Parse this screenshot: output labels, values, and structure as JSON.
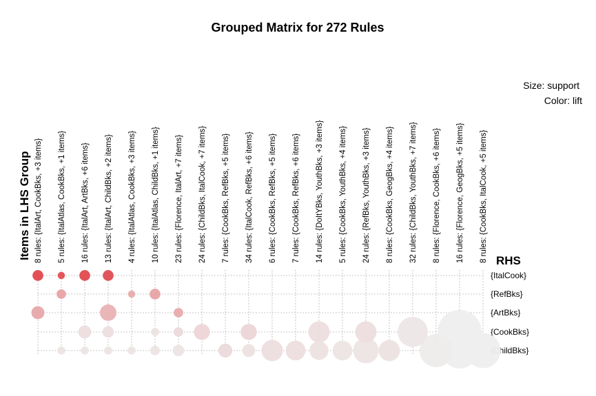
{
  "chart_data": {
    "type": "grouped-matrix",
    "title": "Grouped Matrix for 272 Rules",
    "legend": {
      "size": "Size: support",
      "color": "Color: lift",
      "placement": "top-right"
    },
    "ylabel": "Items in LHS Group",
    "xlabel": "RHS",
    "columns": [
      "8 rules: {ItalArt, CookBks, +3 items}",
      "5 rules: {ItalAtlas, CookBks, +1 items}",
      "16 rules: {ItalArt, ArtBks, +6 items}",
      "13 rules: {ItalArt, ChildBks, +2 items}",
      "4 rules: {ItalAtlas, CookBks, +3 items}",
      "10 rules: {ItalAtlas, ChildBks, +1 items}",
      "23 rules: {Florence, ItalArt, +7 items}",
      "24 rules: {ChildBks, ItalCook, +7 items}",
      "7 rules: {CookBks, RefBks, +5 items}",
      "34 rules: {ItalCook, RefBks, +6 items}",
      "6 rules: {CookBks, RefBks, +5 items}",
      "7 rules: {CookBks, RefBks, +6 items}",
      "14 rules: {DoItYBks, YouthBks, +3 items}",
      "5 rules: {CookBks, YouthBks, +4 items}",
      "24 rules: {RefBks, YouthBks, +3 items}",
      "8 rules: {CookBks, GeogBks, +4 items}",
      "32 rules: {ChildBks, YouthBks, +7 items}",
      "8 rules: {Florence, CookBks, +6 items}",
      "16 rules: {Florence, GeogBks, +5 items}",
      "8 rules: {CookBks, ItalCook, +5 items}"
    ],
    "rows": [
      "{ItalCook}",
      "{RefBks}",
      "{ArtBks}",
      "{CookBks}",
      "{ChildBks}"
    ],
    "colors": {
      "high_lift": "#e0474c",
      "low_lift": "#eeeeee",
      "grid": "#b5b5b5"
    },
    "points": [
      {
        "col": 0,
        "row": 0,
        "support": 0.18,
        "lift": 1.0
      },
      {
        "col": 1,
        "row": 0,
        "support": 0.08,
        "lift": 0.95
      },
      {
        "col": 2,
        "row": 0,
        "support": 0.18,
        "lift": 0.98
      },
      {
        "col": 3,
        "row": 0,
        "support": 0.18,
        "lift": 0.97
      },
      {
        "col": 1,
        "row": 1,
        "support": 0.14,
        "lift": 0.45
      },
      {
        "col": 4,
        "row": 1,
        "support": 0.08,
        "lift": 0.4
      },
      {
        "col": 5,
        "row": 1,
        "support": 0.18,
        "lift": 0.45
      },
      {
        "col": 0,
        "row": 2,
        "support": 0.26,
        "lift": 0.42
      },
      {
        "col": 3,
        "row": 2,
        "support": 0.42,
        "lift": 0.36
      },
      {
        "col": 6,
        "row": 2,
        "support": 0.14,
        "lift": 0.4
      },
      {
        "col": 2,
        "row": 3,
        "support": 0.26,
        "lift": 0.1
      },
      {
        "col": 3,
        "row": 3,
        "support": 0.2,
        "lift": 0.1
      },
      {
        "col": 5,
        "row": 3,
        "support": 0.1,
        "lift": 0.08
      },
      {
        "col": 6,
        "row": 3,
        "support": 0.14,
        "lift": 0.12
      },
      {
        "col": 7,
        "row": 3,
        "support": 0.4,
        "lift": 0.15
      },
      {
        "col": 9,
        "row": 3,
        "support": 0.4,
        "lift": 0.15
      },
      {
        "col": 12,
        "row": 3,
        "support": 0.7,
        "lift": 0.1
      },
      {
        "col": 14,
        "row": 3,
        "support": 0.7,
        "lift": 0.1
      },
      {
        "col": 16,
        "row": 3,
        "support": 1.4,
        "lift": 0.05
      },
      {
        "col": 18,
        "row": 3,
        "support": 3.0,
        "lift": 0.0
      },
      {
        "col": 1,
        "row": 4,
        "support": 0.1,
        "lift": 0.06
      },
      {
        "col": 2,
        "row": 4,
        "support": 0.1,
        "lift": 0.06
      },
      {
        "col": 3,
        "row": 4,
        "support": 0.1,
        "lift": 0.06
      },
      {
        "col": 4,
        "row": 4,
        "support": 0.1,
        "lift": 0.06
      },
      {
        "col": 5,
        "row": 4,
        "support": 0.14,
        "lift": 0.06
      },
      {
        "col": 6,
        "row": 4,
        "support": 0.2,
        "lift": 0.06
      },
      {
        "col": 8,
        "row": 4,
        "support": 0.3,
        "lift": 0.12
      },
      {
        "col": 9,
        "row": 4,
        "support": 0.26,
        "lift": 0.08
      },
      {
        "col": 10,
        "row": 4,
        "support": 0.7,
        "lift": 0.1
      },
      {
        "col": 11,
        "row": 4,
        "support": 0.6,
        "lift": 0.1
      },
      {
        "col": 12,
        "row": 4,
        "support": 0.55,
        "lift": 0.08
      },
      {
        "col": 13,
        "row": 4,
        "support": 0.6,
        "lift": 0.06
      },
      {
        "col": 14,
        "row": 4,
        "support": 1.0,
        "lift": 0.06
      },
      {
        "col": 15,
        "row": 4,
        "support": 0.7,
        "lift": 0.08
      },
      {
        "col": 17,
        "row": 4,
        "support": 1.7,
        "lift": 0.02
      },
      {
        "col": 18,
        "row": 4,
        "support": 2.0,
        "lift": 0.0
      },
      {
        "col": 19,
        "row": 4,
        "support": 1.9,
        "lift": 0.0
      }
    ]
  }
}
